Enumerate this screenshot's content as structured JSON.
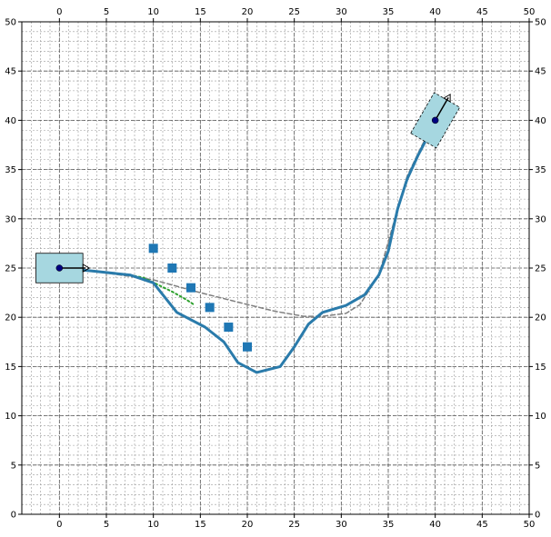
{
  "chart_data": {
    "type": "line",
    "title": "",
    "xlabel": "",
    "ylabel": "",
    "xlim": [
      -4,
      50
    ],
    "ylim": [
      0,
      50
    ],
    "ticks": {
      "x": [
        0,
        5,
        10,
        15,
        20,
        25,
        30,
        35,
        40,
        45,
        50
      ],
      "y": [
        0,
        5,
        10,
        15,
        20,
        25,
        30,
        35,
        40,
        45,
        50
      ]
    },
    "tick_labels_on_all_sides": true,
    "grid": {
      "major": true,
      "minor": true,
      "style": "dashed"
    },
    "start_pose": {
      "x": 0,
      "y": 25,
      "heading_deg": 0,
      "box": {
        "width": 5,
        "height": 3,
        "color": "#a6d7e0"
      }
    },
    "goal_pose": {
      "x": 40,
      "y": 40,
      "heading_deg": 60,
      "box": {
        "width": 5,
        "height": 3,
        "color": "#a6d7e0"
      }
    },
    "obstacles": {
      "color": "#1f77b4",
      "points": [
        {
          "x": 10,
          "y": 27
        },
        {
          "x": 12,
          "y": 25
        },
        {
          "x": 14,
          "y": 23
        },
        {
          "x": 16,
          "y": 21
        },
        {
          "x": 18,
          "y": 19
        },
        {
          "x": 20,
          "y": 17
        }
      ]
    },
    "series": [
      {
        "style": "solid-thick",
        "color": "#2a7bab",
        "x": [
          0,
          3.5,
          7.5,
          10,
          12.5,
          15.5,
          17.5,
          19,
          21,
          23.5,
          25,
          26.5,
          28,
          30.5,
          32.5,
          34,
          35,
          36,
          37,
          38.2,
          39.3,
          40
        ],
        "y": [
          25,
          24.7,
          24.3,
          23.5,
          20.5,
          19,
          17.5,
          15.4,
          14.4,
          15,
          17,
          19.3,
          20.5,
          21.2,
          22.3,
          24.3,
          26.7,
          31,
          34,
          36.5,
          38.5,
          40
        ]
      },
      {
        "style": "dashed",
        "color": "#7f7f7f",
        "x": [
          0,
          5,
          10,
          15,
          20,
          23,
          26,
          28,
          30.5,
          32,
          34,
          36,
          37,
          38.5,
          40
        ],
        "y": [
          25,
          24.5,
          23.8,
          22.5,
          21.3,
          20.6,
          20.1,
          20.1,
          20.4,
          21.3,
          24.3,
          31,
          34.3,
          37.3,
          40
        ]
      },
      {
        "style": "dotted",
        "color": "#2ca02c",
        "x": [
          7.5,
          9,
          10.5,
          12,
          13.5,
          14.3
        ],
        "y": [
          24.3,
          24,
          23.3,
          22.6,
          21.8,
          21.3
        ]
      }
    ]
  }
}
